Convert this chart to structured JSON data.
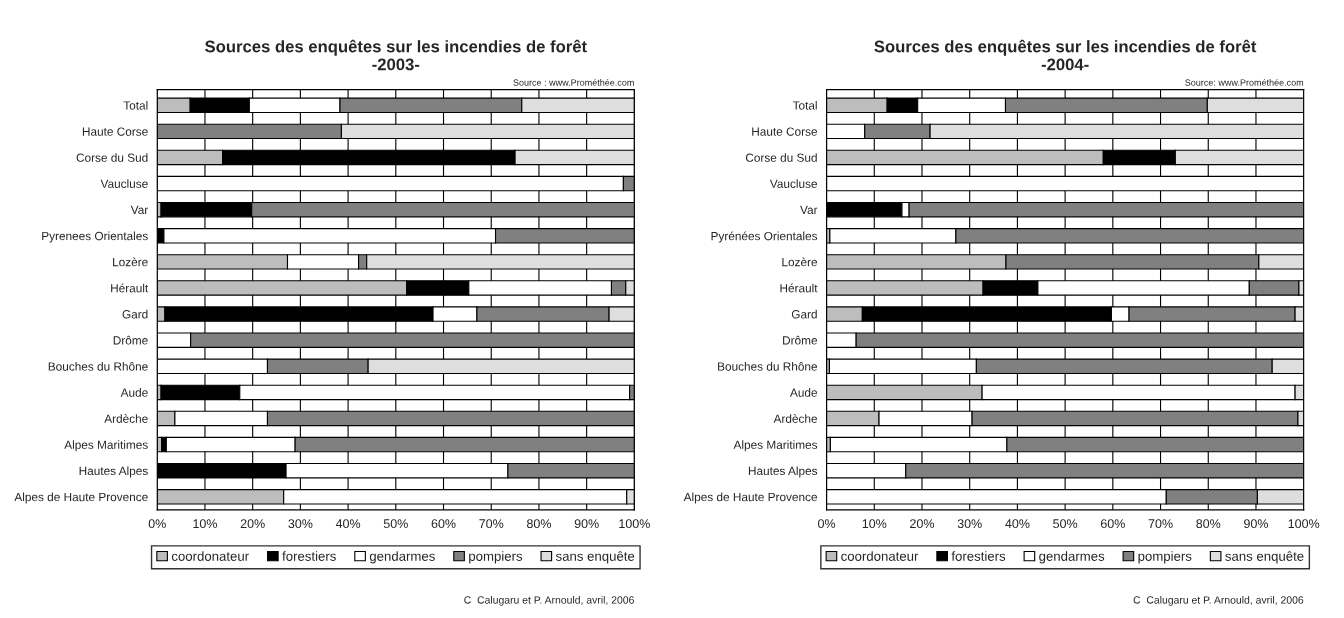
{
  "chart_data": [
    {
      "type": "bar",
      "orientation": "horizontal",
      "stacked": true,
      "title": "Sources des enquêtes sur les incendies de forêt\n-2003-",
      "categories": [
        "Total",
        "Haute Corse",
        "Corse du Sud",
        "Vaucluse",
        "Var",
        "Pyrenees Orientales",
        "Lozère",
        "Hérault",
        "Gard",
        "Drôme",
        "Bouches du Rhône",
        "Aude",
        "Ardèche",
        "Alpes Maritimes",
        "Hautes Alpes",
        "Alpes de Haute Provence"
      ],
      "series": [
        {
          "name": "coordonateur",
          "color": "#bdbdbd",
          "values": [
            6.9,
            0,
            13.7,
            0,
            0.8,
            0,
            27.3,
            52.3,
            1.6,
            0,
            0,
            0.8,
            3.7,
            0.9,
            0,
            26.5
          ]
        },
        {
          "name": "forestiers",
          "color": "#000000",
          "values": [
            12.4,
            0,
            61.3,
            0,
            19.0,
            1.4,
            0,
            13.0,
            56.2,
            0,
            0,
            16.5,
            0,
            1.0,
            27.0,
            0
          ]
        },
        {
          "name": "gendarmes",
          "color": "#ffffff",
          "values": [
            19.0,
            0,
            0,
            97.7,
            0,
            69.5,
            14.9,
            29.9,
            9.2,
            7.0,
            23.1,
            81.7,
            19.4,
            27.0,
            46.5,
            71.9
          ]
        },
        {
          "name": "pompiers",
          "color": "#808080",
          "values": [
            38.1,
            38.6,
            0,
            2.3,
            80.5,
            29.1,
            1.7,
            3.0,
            27.7,
            93.0,
            21.1,
            1.0,
            76.9,
            71.1,
            26.5,
            0
          ]
        },
        {
          "name": "sans enquête",
          "color": "#dedede",
          "values": [
            23.6,
            61.4,
            25.0,
            0,
            0,
            0,
            56.1,
            1.8,
            5.3,
            0,
            55.8,
            0,
            0,
            0,
            0,
            1.6
          ]
        }
      ],
      "xlim": [
        0,
        100
      ],
      "xticks": [
        {
          "value": 0,
          "label": "0%"
        },
        {
          "value": 10,
          "label": "10%"
        },
        {
          "value": 20,
          "label": "20%"
        },
        {
          "value": 30,
          "label": "30%"
        },
        {
          "value": 40,
          "label": "40%"
        },
        {
          "value": 50,
          "label": "50%"
        },
        {
          "value": 60,
          "label": "60%"
        },
        {
          "value": 70,
          "label": "70%"
        },
        {
          "value": 80,
          "label": "80%"
        },
        {
          "value": 90,
          "label": "90%"
        },
        {
          "value": 100,
          "label": "100%"
        }
      ],
      "grid": "x",
      "legend": "bottom",
      "annotations": [
        "Source : www.Prométhée.com",
        "C  Calugaru et P. Arnould, avril, 2006"
      ]
    },
    {
      "type": "bar",
      "orientation": "horizontal",
      "stacked": true,
      "title": "Sources des enquêtes sur les incendies de forêt\n-2004-",
      "categories": [
        "Total",
        "Haute Corse",
        "Corse du Sud",
        "Vaucluse",
        "Var",
        "Pyrénées Orientales",
        "Lozère",
        "Hérault",
        "Gard",
        "Drôme",
        "Bouches du Rhône",
        "Aude",
        "Ardèche",
        "Alpes Maritimes",
        "Hautes Alpes",
        "Alpes de Haute Provence"
      ],
      "series": [
        {
          "name": "coordonateur",
          "color": "#bdbdbd",
          "values": [
            12.7,
            0,
            58.0,
            0,
            0,
            0.7,
            37.6,
            32.8,
            7.5,
            0,
            0.6,
            32.6,
            11.0,
            0.8,
            0,
            0
          ]
        },
        {
          "name": "forestiers",
          "color": "#000000",
          "values": [
            6.4,
            0,
            15.1,
            0,
            15.8,
            0,
            0,
            11.5,
            52.2,
            0,
            0,
            0,
            0,
            0,
            0,
            0
          ]
        },
        {
          "name": "gendarmes",
          "color": "#ffffff",
          "values": [
            18.4,
            8.0,
            0,
            100,
            1.5,
            26.4,
            0,
            44.3,
            3.7,
            6.2,
            30.8,
            65.6,
            19.5,
            37.0,
            16.6,
            71.2
          ]
        },
        {
          "name": "pompiers",
          "color": "#808080",
          "values": [
            42.3,
            13.7,
            0,
            0,
            82.7,
            72.9,
            53.0,
            10.4,
            34.8,
            93.8,
            62.0,
            0,
            68.3,
            62.2,
            83.4,
            19.1
          ]
        },
        {
          "name": "sans enquête",
          "color": "#dedede",
          "values": [
            20.2,
            78.3,
            26.9,
            0,
            0,
            0,
            9.4,
            1.0,
            1.8,
            0,
            6.6,
            1.8,
            1.2,
            0,
            0,
            9.7
          ]
        }
      ],
      "xlim": [
        0,
        100
      ],
      "xticks": [
        {
          "value": 0,
          "label": "0%"
        },
        {
          "value": 10,
          "label": "10%"
        },
        {
          "value": 20,
          "label": "20%"
        },
        {
          "value": 30,
          "label": "30%"
        },
        {
          "value": 40,
          "label": "40%"
        },
        {
          "value": 50,
          "label": "50%"
        },
        {
          "value": 60,
          "label": "60%"
        },
        {
          "value": 70,
          "label": "70%"
        },
        {
          "value": 80,
          "label": "80%"
        },
        {
          "value": 90,
          "label": "90%"
        },
        {
          "value": 100,
          "label": "100%"
        }
      ],
      "grid": "x",
      "legend": "bottom",
      "annotations": [
        "Source: www.Prométhée.com",
        "C  Calugaru et P. Arnould, avril, 2006"
      ]
    }
  ]
}
